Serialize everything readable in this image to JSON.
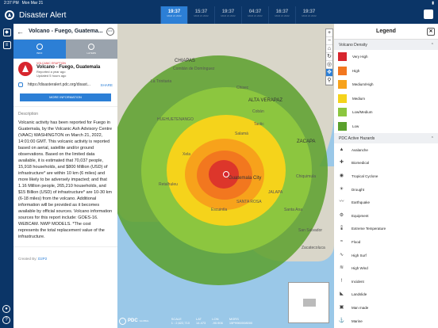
{
  "status": {
    "time": "2:37 PM",
    "date": "Mon Mar 21"
  },
  "app": {
    "title": "Disaster Alert"
  },
  "timeline": [
    {
      "time": "19:37",
      "date": "MAR 21 2022"
    },
    {
      "time": "15:37",
      "date": "MAR 21 2022"
    },
    {
      "time": "19:37",
      "date": "MAR 21 2022"
    },
    {
      "time": "04:37",
      "date": "MAR 21 2022"
    },
    {
      "time": "16:37",
      "date": "MAR 21 2022"
    },
    {
      "time": "19:37",
      "date": "MAR 21 2022"
    }
  ],
  "panel": {
    "title": "Volcano - Fuego, Guatema...",
    "tabs": {
      "info": "INFO",
      "layers": "LAYERS"
    },
    "hazard_type": "VOLCANIC ERUPTION",
    "hazard_name": "Volcano - Fuego, Guatemala",
    "reported": "Reported a year ago",
    "updated": "Updated 5 hours ago",
    "link": "https://disasteralert.pdc.org/disast...",
    "share": "SHARE",
    "more": "MORE INFORMATION",
    "desc_heading": "Description",
    "description": "Volcanic activity has been reported for Fuego in Guatemala, by the Volcanic Ash Advisory Centre (VAAC) WASHINGTON on March 21, 2022, 14:01:00 GMT. This volcanic activity is reported based on aerial, satellite and/or ground observations. Based on the limited data available, it is estimated that 70,037 people, 15,918 households, and $800 Million (USD) of infrastructure* are within 10 km (6 miles) and more likely to be adversely impacted; and that 1.16 Million people, 265,210 households, and $15 Billion (USD) of infrastructure* are 10-30 km (6-18 miles) from the volcano. Additional information will be provided as it becomes available by official sources. Volcano information sources for this report include: GOES-16. WEBCAM. NWP MODELS. *The cost represents the total replacement value of the infrastructure.",
    "created_by": "Created By:",
    "creator": "D2P2"
  },
  "map": {
    "labels": [
      "CHIAPAS",
      "Comitán de Domínguez",
      "La Trinitaria",
      "ALTA VERAPAZ",
      "Cobán",
      "Tactic",
      "Salamá",
      "Xela",
      "Guatemala City",
      "SANTA ROSA",
      "ZACAPA",
      "Chiquimula",
      "Escuintla",
      "Retalhuleu",
      "Zacatecoluca",
      "Santa Ana",
      "San Salvador",
      "JALAPA",
      "HUEHUETENANGO",
      "Chisec"
    ],
    "footer": {
      "brand": "PDC",
      "sub": "GLOBAL",
      "scale_label": "SCALE",
      "lat_label": "LAT",
      "lon_label": "LON",
      "mgrs_label": "MGRS",
      "scale": "1 : 2,622,710",
      "lat": "14.473",
      "lon": "-90.906",
      "mgrs": "15P9960008000"
    }
  },
  "legend": {
    "title": "Legend",
    "density_title": "Volcano Density",
    "density": [
      {
        "label": "Very High",
        "color": "#d7262e"
      },
      {
        "label": "High",
        "color": "#f2771f"
      },
      {
        "label": "Medium/High",
        "color": "#f7a21b"
      },
      {
        "label": "Medium",
        "color": "#f5d31b"
      },
      {
        "label": "Low/Medium",
        "color": "#8cc63f"
      },
      {
        "label": "Low",
        "color": "#5aa02c"
      }
    ],
    "hazards_title": "PDC Active Hazards",
    "hazards": [
      {
        "label": "Avalanche",
        "icon": "avalanche-icon"
      },
      {
        "label": "Biomedical",
        "icon": "biomedical-icon"
      },
      {
        "label": "Tropical Cyclone",
        "icon": "cyclone-icon"
      },
      {
        "label": "Drought",
        "icon": "drought-icon"
      },
      {
        "label": "Earthquake",
        "icon": "earthquake-icon"
      },
      {
        "label": "Equipment",
        "icon": "equipment-icon"
      },
      {
        "label": "Extreme Temperature",
        "icon": "temperature-icon"
      },
      {
        "label": "Flood",
        "icon": "flood-icon"
      },
      {
        "label": "High Surf",
        "icon": "surf-icon"
      },
      {
        "label": "High Wind",
        "icon": "wind-icon"
      },
      {
        "label": "Incident",
        "icon": "incident-icon"
      },
      {
        "label": "Landslide",
        "icon": "landslide-icon"
      },
      {
        "label": "Man made",
        "icon": "manmade-icon"
      },
      {
        "label": "Marine",
        "icon": "marine-icon"
      }
    ]
  }
}
